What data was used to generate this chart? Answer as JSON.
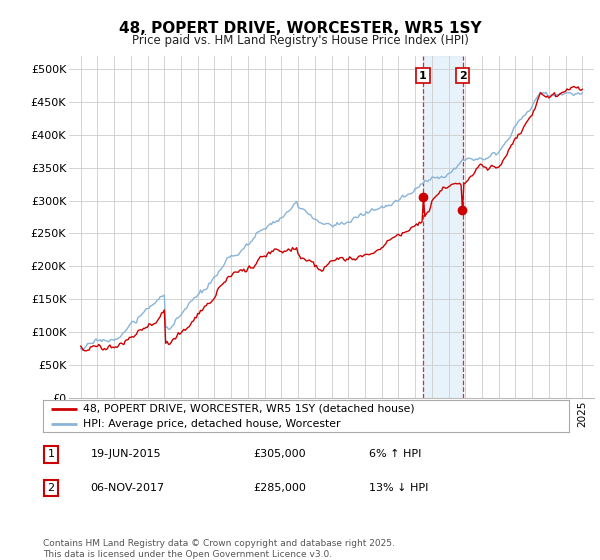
{
  "title": "48, POPERT DRIVE, WORCESTER, WR5 1SY",
  "subtitle": "Price paid vs. HM Land Registry's House Price Index (HPI)",
  "ylim": [
    0,
    520000
  ],
  "yticks": [
    0,
    50000,
    100000,
    150000,
    200000,
    250000,
    300000,
    350000,
    400000,
    450000,
    500000
  ],
  "ytick_labels": [
    "£0",
    "£50K",
    "£100K",
    "£150K",
    "£200K",
    "£250K",
    "£300K",
    "£350K",
    "£400K",
    "£450K",
    "£500K"
  ],
  "hpi_color": "#8ab4d8",
  "price_color": "#cc0000",
  "sale1_year": 2015.47,
  "sale1_price": 305000,
  "sale2_year": 2017.85,
  "sale2_price": 285000,
  "legend_line1": "48, POPERT DRIVE, WORCESTER, WR5 1SY (detached house)",
  "legend_line2": "HPI: Average price, detached house, Worcester",
  "sale1_date": "19-JUN-2015",
  "sale1_price_str": "£305,000",
  "sale1_hpi": "6% ↑ HPI",
  "sale2_date": "06-NOV-2017",
  "sale2_price_str": "£285,000",
  "sale2_hpi": "13% ↓ HPI",
  "footer": "Contains HM Land Registry data © Crown copyright and database right 2025.\nThis data is licensed under the Open Government Licence v3.0.",
  "background_color": "#ffffff",
  "grid_color": "#cccccc",
  "shade_color": "#daeaf7"
}
